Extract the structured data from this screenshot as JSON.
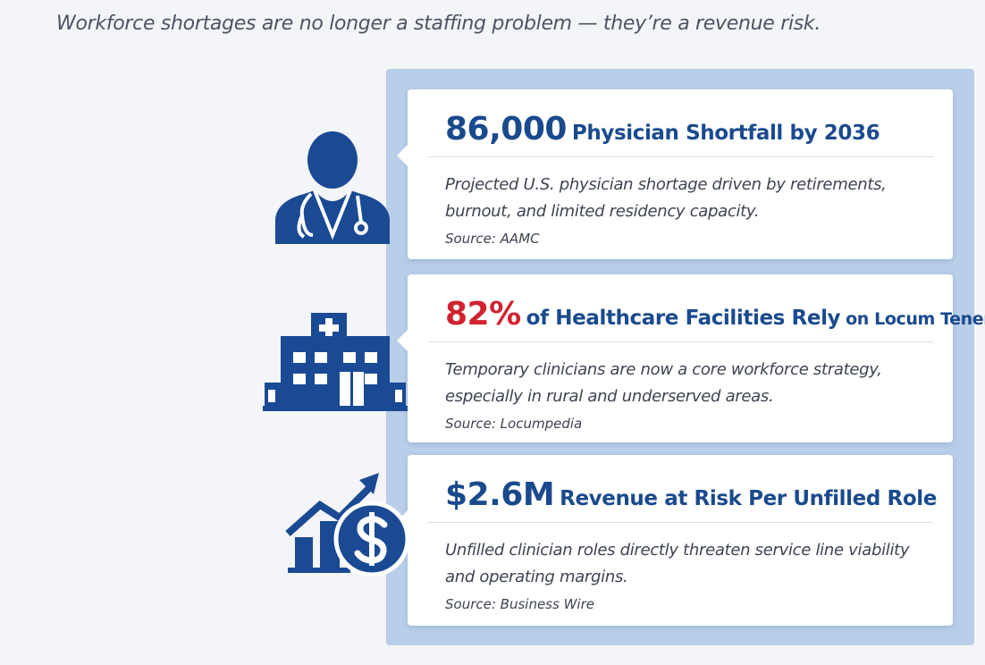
{
  "header": {
    "title": "Workforce shortages are no longer a staffing problem — they’re a revenue risk."
  },
  "cards": [
    {
      "stat": "86,000",
      "heading": [
        "Physician Shortfall by 2036"
      ],
      "body": [
        "Projected U.S. physician shortage driven by retirements,",
        "burnout, and limited residency capacity."
      ],
      "source": "Source: AAMC"
    },
    {
      "stat": "82%",
      "heading": [
        "of Healthcare Facilities Rely",
        "on Locum Tenens"
      ],
      "body": [
        "Temporary clinicians are now a core workforce strategy,",
        "especially in rural and underserved areas."
      ],
      "source": "Source: Locumpedia"
    },
    {
      "stat": "$2.6M",
      "heading": [
        "Revenue at Risk Per Unfilled Role"
      ],
      "body": [
        "Unfilled clinician roles directly threaten service line viability",
        "and operating margins."
      ],
      "source": "Source: Business Wire"
    }
  ]
}
